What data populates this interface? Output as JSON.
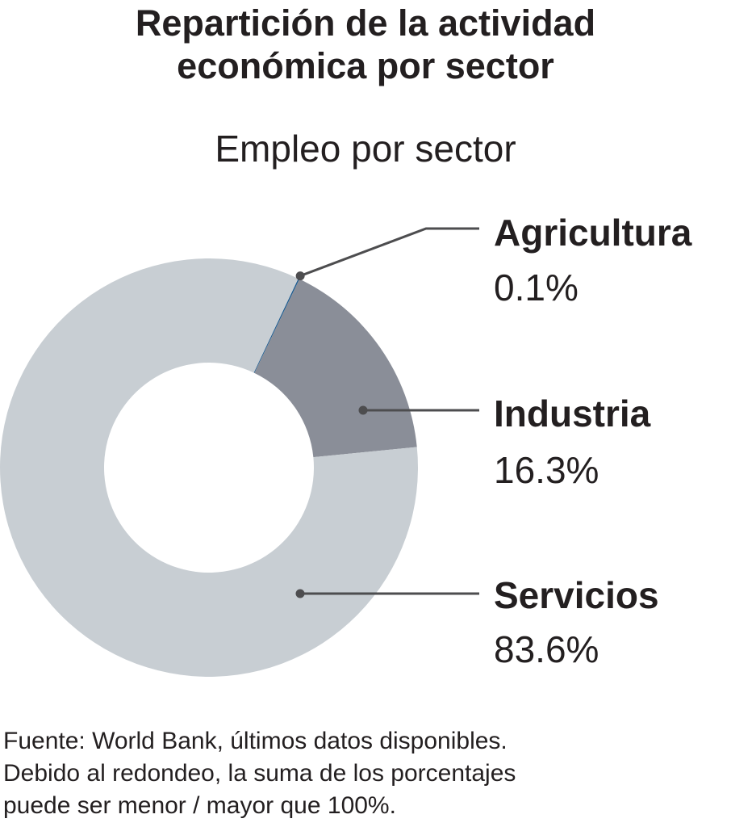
{
  "title_lines": [
    "Repartición de la actividad",
    "económica por sector"
  ],
  "footer_lines": [
    "Fuente: World Bank, últimos datos disponibles.",
    "Debido al redondeo, la suma de los porcentajes",
    "puede ser menor / mayor que 100%."
  ],
  "chart_data": {
    "type": "pie",
    "variant": "donut",
    "title": "Empleo por sector",
    "categories": [
      "Agricultura",
      "Industria",
      "Servicios"
    ],
    "values": [
      0.1,
      16.3,
      83.6
    ],
    "value_labels": [
      "0.1%",
      "16.3%",
      "83.6%"
    ],
    "colors": [
      "#1d5b8f",
      "#8a8e98",
      "#c8ced3"
    ],
    "line_color": "#4d4d4f",
    "legend": "right"
  }
}
